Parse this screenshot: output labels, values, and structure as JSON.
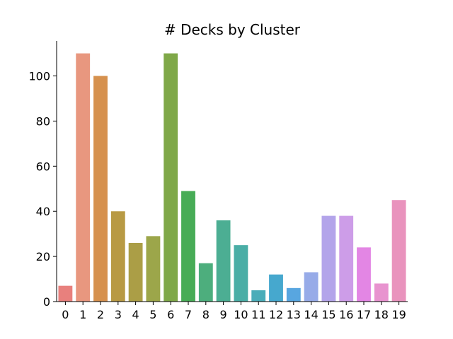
{
  "chart_data": {
    "type": "bar",
    "title": "# Decks by Cluster",
    "xlabel": "",
    "ylabel": "",
    "categories": [
      "0",
      "1",
      "2",
      "3",
      "4",
      "5",
      "6",
      "7",
      "8",
      "9",
      "10",
      "11",
      "12",
      "13",
      "14",
      "15",
      "16",
      "17",
      "18",
      "19"
    ],
    "values": [
      7,
      110,
      100,
      40,
      26,
      29,
      110,
      49,
      17,
      36,
      25,
      5,
      12,
      6,
      13,
      38,
      38,
      24,
      8,
      45
    ],
    "ylim": [
      0,
      115.5
    ],
    "yticks": [
      0,
      20,
      40,
      60,
      80,
      100
    ],
    "grid": false,
    "colors": [
      "#e8807d",
      "#e8977f",
      "#d6914e",
      "#b89a44",
      "#ab9e46",
      "#9ca64a",
      "#7fa848",
      "#47ac56",
      "#4dae7d",
      "#4cae93",
      "#4aaea6",
      "#4aadb9",
      "#46a8ce",
      "#58a6e0",
      "#97abe8",
      "#b3a4ea",
      "#cd9de8",
      "#e386e4",
      "#e893cf",
      "#e993bd"
    ]
  }
}
